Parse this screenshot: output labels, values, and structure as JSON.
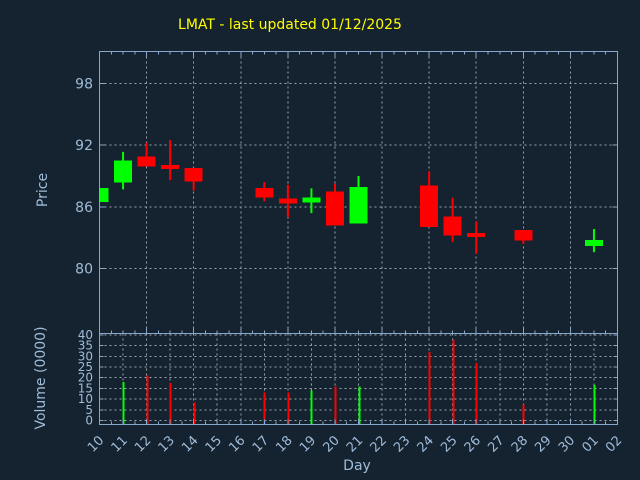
{
  "chart_data": {
    "type": "candlestick",
    "title": "LMAT - last updated 01/12/2025",
    "xlabel": "Day",
    "x_tick_labels": [
      "10",
      "11",
      "12",
      "13",
      "14",
      "15",
      "16",
      "17",
      "18",
      "19",
      "20",
      "21",
      "22",
      "23",
      "24",
      "25",
      "26",
      "27",
      "28",
      "29",
      "30",
      "01",
      "02"
    ],
    "price_pane": {
      "ylabel": "Price",
      "yticks": [
        80,
        86,
        92,
        98
      ],
      "ylim": [
        73.7,
        101.1
      ],
      "grid": true
    },
    "volume_pane": {
      "ylabel": "Volume (0000)",
      "yticks": [
        0,
        5,
        10,
        15,
        20,
        25,
        30,
        35,
        40
      ],
      "ylim": [
        -1.9,
        40.7
      ],
      "grid": true
    },
    "candles": [
      {
        "day": "10",
        "open": 86.5,
        "high": 87.85,
        "low": 86.5,
        "close": 87.85,
        "volume": 0
      },
      {
        "day": "11",
        "open": 88.35,
        "high": 91.35,
        "low": 87.7,
        "close": 90.5,
        "volume": 18
      },
      {
        "day": "12",
        "open": 90.9,
        "high": 92.25,
        "low": 89.95,
        "close": 89.95,
        "volume": 21
      },
      {
        "day": "13",
        "open": 90.05,
        "high": 92.5,
        "low": 88.6,
        "close": 89.7,
        "volume": 17.5
      },
      {
        "day": "14",
        "open": 89.8,
        "high": 89.8,
        "low": 87.6,
        "close": 88.45,
        "volume": 8.5
      },
      {
        "day": "17",
        "open": 87.85,
        "high": 88.4,
        "low": 86.55,
        "close": 86.9,
        "volume": 13
      },
      {
        "day": "18",
        "open": 86.8,
        "high": 88.15,
        "low": 85.0,
        "close": 86.35,
        "volume": 13
      },
      {
        "day": "19",
        "open": 86.45,
        "high": 87.8,
        "low": 85.4,
        "close": 86.9,
        "volume": 14
      },
      {
        "day": "20",
        "open": 87.5,
        "high": 88.25,
        "low": 84.2,
        "close": 84.2,
        "volume": 16
      },
      {
        "day": "21",
        "open": 84.4,
        "high": 89.0,
        "low": 84.4,
        "close": 87.95,
        "volume": 16
      },
      {
        "day": "24",
        "open": 88.1,
        "high": 89.45,
        "low": 84.05,
        "close": 84.05,
        "volume": 32
      },
      {
        "day": "25",
        "open": 85.05,
        "high": 86.9,
        "low": 82.6,
        "close": 83.2,
        "volume": 38
      },
      {
        "day": "26",
        "open": 83.45,
        "high": 84.6,
        "low": 81.45,
        "close": 83.1,
        "volume": 27
      },
      {
        "day": "28",
        "open": 83.75,
        "high": 83.75,
        "low": 82.4,
        "close": 82.75,
        "volume": 7.5
      },
      {
        "day": "01",
        "open": 82.2,
        "high": 83.85,
        "low": 81.6,
        "close": 82.8,
        "volume": 16.5
      }
    ],
    "colors": {
      "up": "#00ff00",
      "down": "#ff0000",
      "background": "#15222f",
      "frame": "#87a7cb",
      "text": "#9fbcd9",
      "grid": "#9aa6ad",
      "title": "#ffff00"
    }
  }
}
